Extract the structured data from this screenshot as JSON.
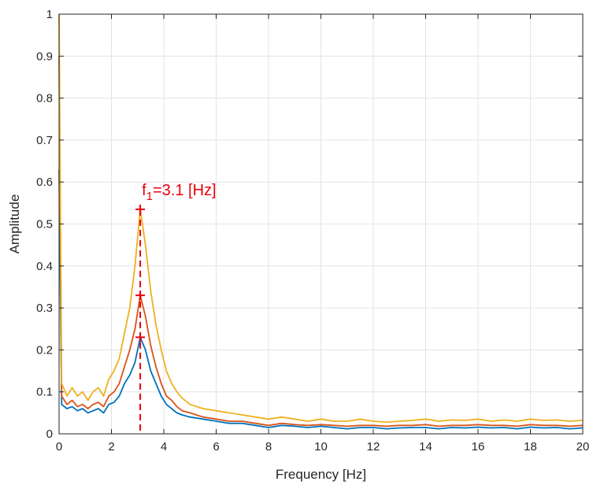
{
  "chart_data": {
    "type": "line",
    "xlabel": "Frequency [Hz]",
    "ylabel": "Amplitude",
    "xlim": [
      0,
      20
    ],
    "ylim": [
      0,
      1
    ],
    "x_ticks": [
      "0",
      "2",
      "4",
      "6",
      "8",
      "10",
      "12",
      "14",
      "16",
      "18",
      "20"
    ],
    "y_ticks": [
      "0",
      "0.1",
      "0.2",
      "0.3",
      "0.4",
      "0.5",
      "0.6",
      "0.7",
      "0.8",
      "0.9",
      "1"
    ],
    "grid": true,
    "colors": [
      "#0072bd",
      "#d95319",
      "#edb120"
    ],
    "series": [
      {
        "points": [
          [
            0,
            0.63
          ],
          [
            0.1,
            0.07
          ],
          [
            0.3,
            0.06
          ],
          [
            0.5,
            0.065
          ],
          [
            0.7,
            0.055
          ],
          [
            0.9,
            0.06
          ],
          [
            1.1,
            0.05
          ],
          [
            1.3,
            0.055
          ],
          [
            1.5,
            0.06
          ],
          [
            1.7,
            0.05
          ],
          [
            1.9,
            0.07
          ],
          [
            2.1,
            0.075
          ],
          [
            2.3,
            0.09
          ],
          [
            2.5,
            0.12
          ],
          [
            2.7,
            0.14
          ],
          [
            2.9,
            0.17
          ],
          [
            3.1,
            0.23
          ],
          [
            3.3,
            0.2
          ],
          [
            3.5,
            0.15
          ],
          [
            3.7,
            0.12
          ],
          [
            3.9,
            0.09
          ],
          [
            4.1,
            0.07
          ],
          [
            4.3,
            0.06
          ],
          [
            4.5,
            0.05
          ],
          [
            4.7,
            0.045
          ],
          [
            5.0,
            0.04
          ],
          [
            5.5,
            0.035
          ],
          [
            6,
            0.03
          ],
          [
            6.5,
            0.025
          ],
          [
            7,
            0.025
          ],
          [
            7.5,
            0.02
          ],
          [
            8,
            0.015
          ],
          [
            8.5,
            0.02
          ],
          [
            9,
            0.018
          ],
          [
            9.5,
            0.015
          ],
          [
            10,
            0.018
          ],
          [
            10.5,
            0.015
          ],
          [
            11,
            0.012
          ],
          [
            11.5,
            0.015
          ],
          [
            12,
            0.015
          ],
          [
            12.5,
            0.012
          ],
          [
            13,
            0.014
          ],
          [
            13.5,
            0.015
          ],
          [
            14,
            0.015
          ],
          [
            14.5,
            0.012
          ],
          [
            15,
            0.015
          ],
          [
            15.5,
            0.014
          ],
          [
            16,
            0.016
          ],
          [
            16.5,
            0.014
          ],
          [
            17,
            0.015
          ],
          [
            17.5,
            0.012
          ],
          [
            18,
            0.016
          ],
          [
            18.5,
            0.014
          ],
          [
            19,
            0.015
          ],
          [
            19.5,
            0.012
          ],
          [
            20,
            0.014
          ]
        ]
      },
      {
        "points": [
          [
            0,
            0.9
          ],
          [
            0.1,
            0.09
          ],
          [
            0.3,
            0.07
          ],
          [
            0.5,
            0.08
          ],
          [
            0.7,
            0.065
          ],
          [
            0.9,
            0.07
          ],
          [
            1.1,
            0.06
          ],
          [
            1.3,
            0.07
          ],
          [
            1.5,
            0.075
          ],
          [
            1.7,
            0.065
          ],
          [
            1.9,
            0.09
          ],
          [
            2.1,
            0.1
          ],
          [
            2.3,
            0.12
          ],
          [
            2.5,
            0.16
          ],
          [
            2.7,
            0.2
          ],
          [
            2.9,
            0.25
          ],
          [
            3.1,
            0.33
          ],
          [
            3.3,
            0.28
          ],
          [
            3.5,
            0.21
          ],
          [
            3.7,
            0.16
          ],
          [
            3.9,
            0.12
          ],
          [
            4.1,
            0.09
          ],
          [
            4.3,
            0.08
          ],
          [
            4.5,
            0.065
          ],
          [
            4.7,
            0.055
          ],
          [
            5.0,
            0.05
          ],
          [
            5.5,
            0.04
          ],
          [
            6,
            0.035
          ],
          [
            6.5,
            0.03
          ],
          [
            7,
            0.03
          ],
          [
            7.5,
            0.025
          ],
          [
            8,
            0.02
          ],
          [
            8.5,
            0.025
          ],
          [
            9,
            0.022
          ],
          [
            9.5,
            0.02
          ],
          [
            10,
            0.022
          ],
          [
            10.5,
            0.02
          ],
          [
            11,
            0.018
          ],
          [
            11.5,
            0.02
          ],
          [
            12,
            0.02
          ],
          [
            12.5,
            0.018
          ],
          [
            13,
            0.02
          ],
          [
            13.5,
            0.02
          ],
          [
            14,
            0.022
          ],
          [
            14.5,
            0.018
          ],
          [
            15,
            0.02
          ],
          [
            15.5,
            0.02
          ],
          [
            16,
            0.022
          ],
          [
            16.5,
            0.02
          ],
          [
            17,
            0.02
          ],
          [
            17.5,
            0.018
          ],
          [
            18,
            0.022
          ],
          [
            18.5,
            0.02
          ],
          [
            19,
            0.02
          ],
          [
            19.5,
            0.018
          ],
          [
            20,
            0.02
          ]
        ]
      },
      {
        "points": [
          [
            0,
            1.0
          ],
          [
            0.1,
            0.12
          ],
          [
            0.3,
            0.09
          ],
          [
            0.5,
            0.11
          ],
          [
            0.7,
            0.09
          ],
          [
            0.9,
            0.1
          ],
          [
            1.1,
            0.08
          ],
          [
            1.3,
            0.1
          ],
          [
            1.5,
            0.11
          ],
          [
            1.7,
            0.09
          ],
          [
            1.9,
            0.13
          ],
          [
            2.1,
            0.15
          ],
          [
            2.3,
            0.18
          ],
          [
            2.5,
            0.24
          ],
          [
            2.7,
            0.3
          ],
          [
            2.9,
            0.4
          ],
          [
            3.1,
            0.535
          ],
          [
            3.3,
            0.45
          ],
          [
            3.5,
            0.34
          ],
          [
            3.7,
            0.26
          ],
          [
            3.9,
            0.2
          ],
          [
            4.1,
            0.15
          ],
          [
            4.3,
            0.12
          ],
          [
            4.5,
            0.1
          ],
          [
            4.7,
            0.085
          ],
          [
            5.0,
            0.07
          ],
          [
            5.5,
            0.06
          ],
          [
            6,
            0.055
          ],
          [
            6.5,
            0.05
          ],
          [
            7,
            0.045
          ],
          [
            7.5,
            0.04
          ],
          [
            8,
            0.035
          ],
          [
            8.5,
            0.04
          ],
          [
            9,
            0.035
          ],
          [
            9.5,
            0.03
          ],
          [
            10,
            0.035
          ],
          [
            10.5,
            0.03
          ],
          [
            11,
            0.03
          ],
          [
            11.5,
            0.035
          ],
          [
            12,
            0.03
          ],
          [
            12.5,
            0.028
          ],
          [
            13,
            0.03
          ],
          [
            13.5,
            0.032
          ],
          [
            14,
            0.035
          ],
          [
            14.5,
            0.03
          ],
          [
            15,
            0.033
          ],
          [
            15.5,
            0.032
          ],
          [
            16,
            0.035
          ],
          [
            16.5,
            0.03
          ],
          [
            17,
            0.033
          ],
          [
            17.5,
            0.03
          ],
          [
            18,
            0.035
          ],
          [
            18.5,
            0.032
          ],
          [
            19,
            0.033
          ],
          [
            19.5,
            0.03
          ],
          [
            20,
            0.032
          ]
        ]
      }
    ],
    "annotations": {
      "peak_x": 3.1,
      "peak_markers_y": [
        0.535,
        0.33,
        0.23
      ],
      "label": {
        "prefix": "f",
        "sub": "1",
        "suffix": "=3.1 [Hz]"
      },
      "color": "#e8000b"
    }
  }
}
